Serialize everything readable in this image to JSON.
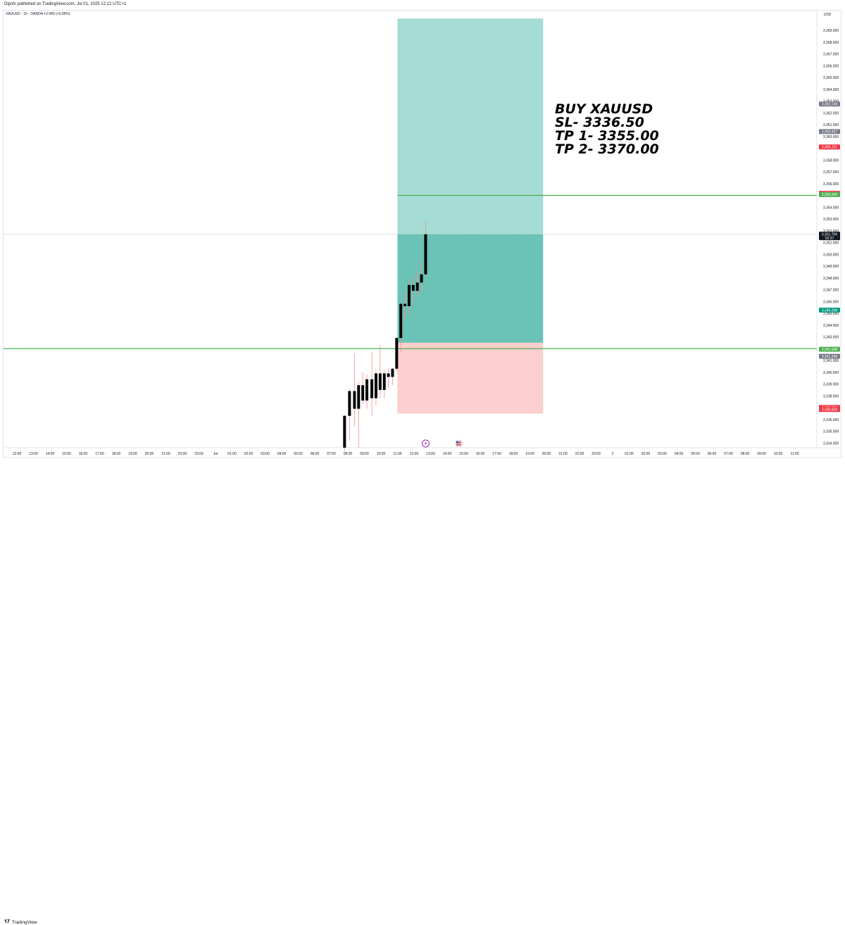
{
  "header": {
    "published_by": "Dipsfx published on TradingView.com, Jul 01, 2025 12:12 UTC+1",
    "symbol_line": "XAUUSD · 15 · OANDA  +2.945 (+0.09%)"
  },
  "footer": {
    "logo_text": "TradingView"
  },
  "annotation": {
    "lines": [
      "BUY XAUUSD",
      "SL- 3336.50",
      "TP 1- 3355.00",
      "TP 2- 3370.00"
    ]
  },
  "colors": {
    "profit_zone": "#a5dcd4",
    "profit_zone_filled": "#6bc2b6",
    "loss_zone": "#fbcfce",
    "horizontal_line": "#4caf50",
    "candle": "#000000",
    "wick": "#f28e8e"
  },
  "chart_data": {
    "type": "candlestick",
    "currency": "USD",
    "y_range": [
      3333.3,
      3371.4
    ],
    "y_ticks": [
      "3,369.000",
      "3,368.000",
      "3,367.000",
      "3,366.000",
      "3,365.000",
      "3,364.000",
      "3,363.000",
      "3,362.000",
      "3,361.000",
      "3,360.000",
      "3,359.000",
      "3,358.000",
      "3,357.000",
      "3,356.000",
      "3,355.000",
      "3,354.000",
      "3,353.000",
      "3,352.000",
      "3,351.000",
      "3,350.000",
      "3,349.000",
      "3,348.000",
      "3,347.000",
      "3,346.000",
      "3,345.000",
      "3,344.000",
      "3,343.000",
      "3,342.000",
      "3,341.000",
      "3,340.000",
      "3,339.000",
      "3,338.000",
      "3,337.000",
      "3,336.000",
      "3,335.000",
      "3,334.000"
    ],
    "x_ticks": [
      "12:00",
      "13:00",
      "14:00",
      "15:00",
      "16:00",
      "17:00",
      "18:00",
      "19:00",
      "20:00",
      "21:00",
      "22:00",
      "23:00",
      "Jul",
      "01:00",
      "02:00",
      "03:00",
      "04:00",
      "05:00",
      "06:00",
      "07:00",
      "08:00",
      "09:00",
      "10:00",
      "11:00",
      "12:00",
      "13:00",
      "14:00",
      "15:00",
      "16:00",
      "17:00",
      "18:00",
      "19:00",
      "20:00",
      "21:00",
      "22:00",
      "23:00",
      "2",
      "01:00",
      "02:00",
      "03:00",
      "04:00",
      "05:00",
      "06:00",
      "07:00",
      "08:00",
      "09:00",
      "10:00",
      "11:00"
    ],
    "x_index_range": [
      0,
      47
    ],
    "candles": [
      {
        "t": 19.8,
        "o": 3333.6,
        "h": 3336.4,
        "l": 3333.3,
        "c": 3336.3
      },
      {
        "t": 20.1,
        "o": 3336.3,
        "h": 3338.6,
        "l": 3334.2,
        "c": 3338.4
      },
      {
        "t": 20.4,
        "o": 3338.4,
        "h": 3341.6,
        "l": 3335.4,
        "c": 3336.9
      },
      {
        "t": 20.65,
        "o": 3336.9,
        "h": 3339.1,
        "l": 3333.6,
        "c": 3338.9
      },
      {
        "t": 20.9,
        "o": 3338.9,
        "h": 3340.0,
        "l": 3337.3,
        "c": 3337.6
      },
      {
        "t": 21.15,
        "o": 3337.6,
        "h": 3339.8,
        "l": 3336.9,
        "c": 3339.4
      },
      {
        "t": 21.45,
        "o": 3339.4,
        "h": 3341.7,
        "l": 3336.3,
        "c": 3337.8
      },
      {
        "t": 21.7,
        "o": 3337.8,
        "h": 3340.2,
        "l": 3337.2,
        "c": 3339.9
      },
      {
        "t": 21.95,
        "o": 3339.9,
        "h": 3342.3,
        "l": 3337.8,
        "c": 3338.5
      },
      {
        "t": 22.2,
        "o": 3338.5,
        "h": 3340.2,
        "l": 3337.8,
        "c": 3339.9
      },
      {
        "t": 22.45,
        "o": 3339.9,
        "h": 3340.3,
        "l": 3338.7,
        "c": 3339.6
      },
      {
        "t": 22.7,
        "o": 3339.6,
        "h": 3340.4,
        "l": 3338.9,
        "c": 3340.3
      },
      {
        "t": 22.95,
        "o": 3340.3,
        "h": 3343.0,
        "l": 3340.0,
        "c": 3342.9
      },
      {
        "t": 23.2,
        "o": 3342.9,
        "h": 3345.9,
        "l": 3341.7,
        "c": 3345.8
      },
      {
        "t": 23.45,
        "o": 3345.8,
        "h": 3346.8,
        "l": 3344.4,
        "c": 3345.6
      },
      {
        "t": 23.7,
        "o": 3345.6,
        "h": 3347.8,
        "l": 3344.9,
        "c": 3347.4
      },
      {
        "t": 23.95,
        "o": 3347.4,
        "h": 3348.3,
        "l": 3345.6,
        "c": 3346.9
      },
      {
        "t": 24.2,
        "o": 3346.9,
        "h": 3348.6,
        "l": 3346.4,
        "c": 3347.6
      },
      {
        "t": 24.45,
        "o": 3347.6,
        "h": 3349.4,
        "l": 3346.8,
        "c": 3348.3
      },
      {
        "t": 24.7,
        "o": 3348.3,
        "h": 3352.8,
        "l": 3348.2,
        "c": 3351.7
      }
    ],
    "long_position": {
      "entry": 3351.7,
      "target": 3370.0,
      "stop": 3336.5,
      "start_t": 23.0,
      "end_t": 31.8,
      "filled_low": 3342.5
    },
    "horizontal_lines": [
      3355.0,
      3342.0
    ],
    "current_price_line": 3351.7,
    "price_labels": [
      {
        "text": "3,362.749",
        "color": "#787b86"
      },
      {
        "text": "3,360.407",
        "color": "#787b86"
      },
      {
        "text": "3,359.101",
        "color": "#f23645"
      },
      {
        "text": "3,355.168",
        "color": "#f23645"
      },
      {
        "text": "3,355.069",
        "color": "#4caf50"
      },
      {
        "text": "3,351.706",
        "color": "#131722",
        "sub": "02:37"
      },
      {
        "text": "3,345.268",
        "color": "#089981"
      },
      {
        "text": "3,341.948",
        "color": "#4caf50"
      },
      {
        "text": "3,341.349",
        "color": "#787b86"
      },
      {
        "text": "3,337.014",
        "color": "#f23645"
      },
      {
        "text": "3,336.838",
        "color": "#f23645"
      }
    ],
    "price_label_values": [
      3362.749,
      3360.407,
      3359.101,
      3355.168,
      3355.069,
      3351.706,
      3345.268,
      3341.948,
      3341.349,
      3337.014,
      3336.838
    ],
    "event_markers": [
      {
        "t": 24.7,
        "icon": "lightning-icon"
      },
      {
        "t": 26.7,
        "icon": "us-flag-icon"
      }
    ]
  }
}
